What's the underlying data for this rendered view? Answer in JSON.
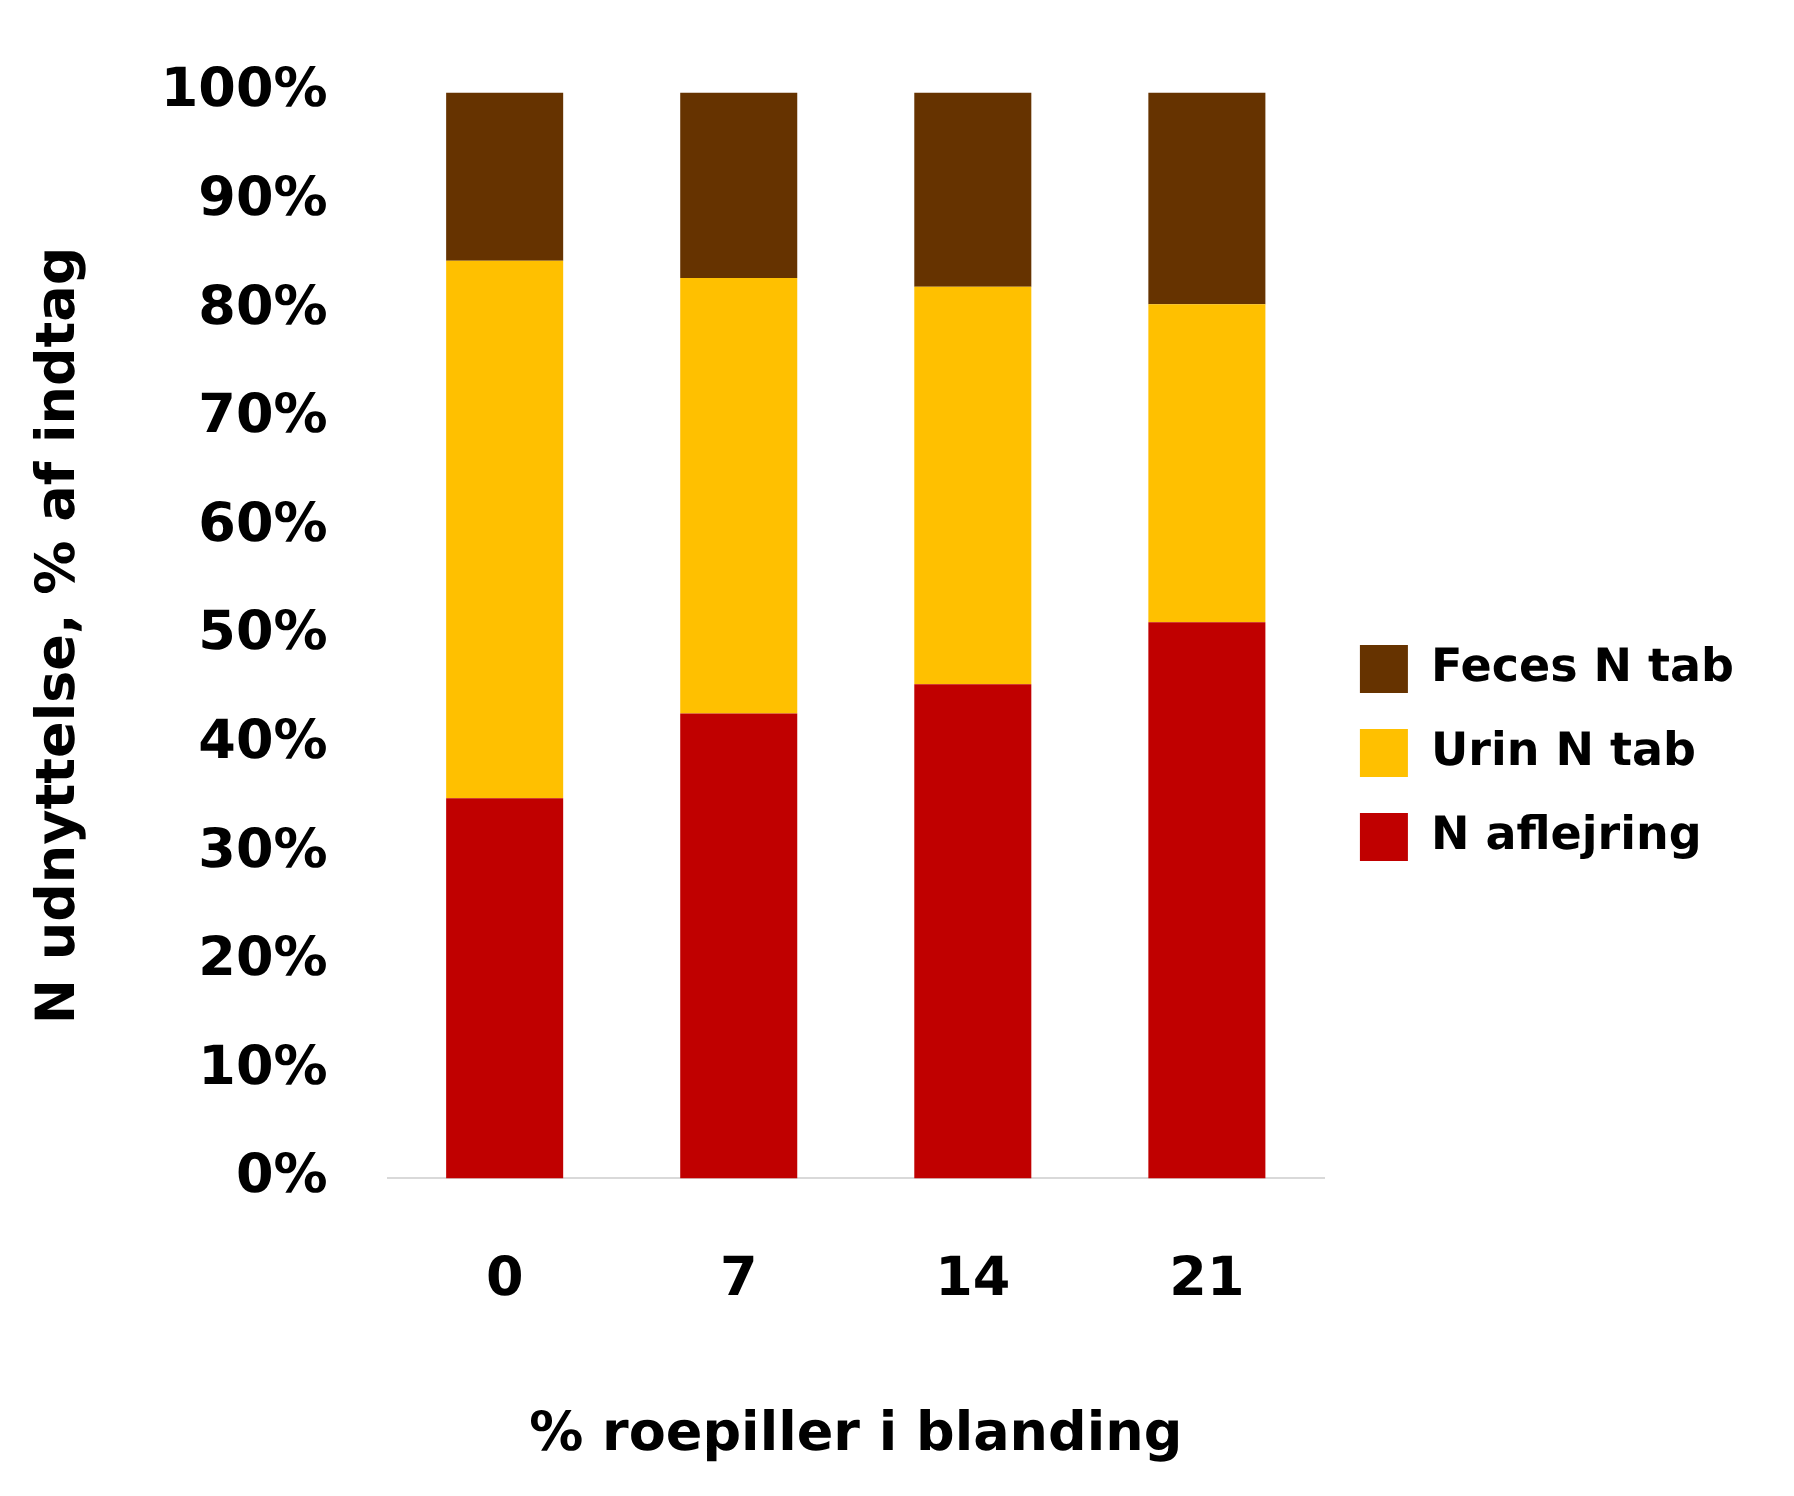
{
  "chart_data": {
    "type": "bar",
    "stacked": true,
    "xlabel": "% roepiller i blanding",
    "ylabel": "N udnyttelse, % af indtag",
    "categories": [
      "0",
      "7",
      "14",
      "21"
    ],
    "series": [
      {
        "name": "N aflejring",
        "color": "#c00000",
        "values": [
          35,
          42.8,
          45.5,
          51.2
        ]
      },
      {
        "name": "Urin N tab",
        "color": "#ffc000",
        "values": [
          49.5,
          40.1,
          36.6,
          29.3
        ]
      },
      {
        "name": "Feces N tab",
        "color": "#663300",
        "values": [
          15.5,
          17.1,
          17.9,
          19.5
        ]
      }
    ],
    "ylim": [
      0,
      100
    ],
    "yticks": [
      {
        "value": 0,
        "label": "0%"
      },
      {
        "value": 10,
        "label": "10%"
      },
      {
        "value": 20,
        "label": "20%"
      },
      {
        "value": 30,
        "label": "30%"
      },
      {
        "value": 40,
        "label": "40%"
      },
      {
        "value": 50,
        "label": "50%"
      },
      {
        "value": 60,
        "label": "60%"
      },
      {
        "value": 70,
        "label": "70%"
      },
      {
        "value": 80,
        "label": "80%"
      },
      {
        "value": 90,
        "label": "90%"
      },
      {
        "value": 100,
        "label": "100%"
      }
    ],
    "grid": false,
    "legend": "right"
  }
}
